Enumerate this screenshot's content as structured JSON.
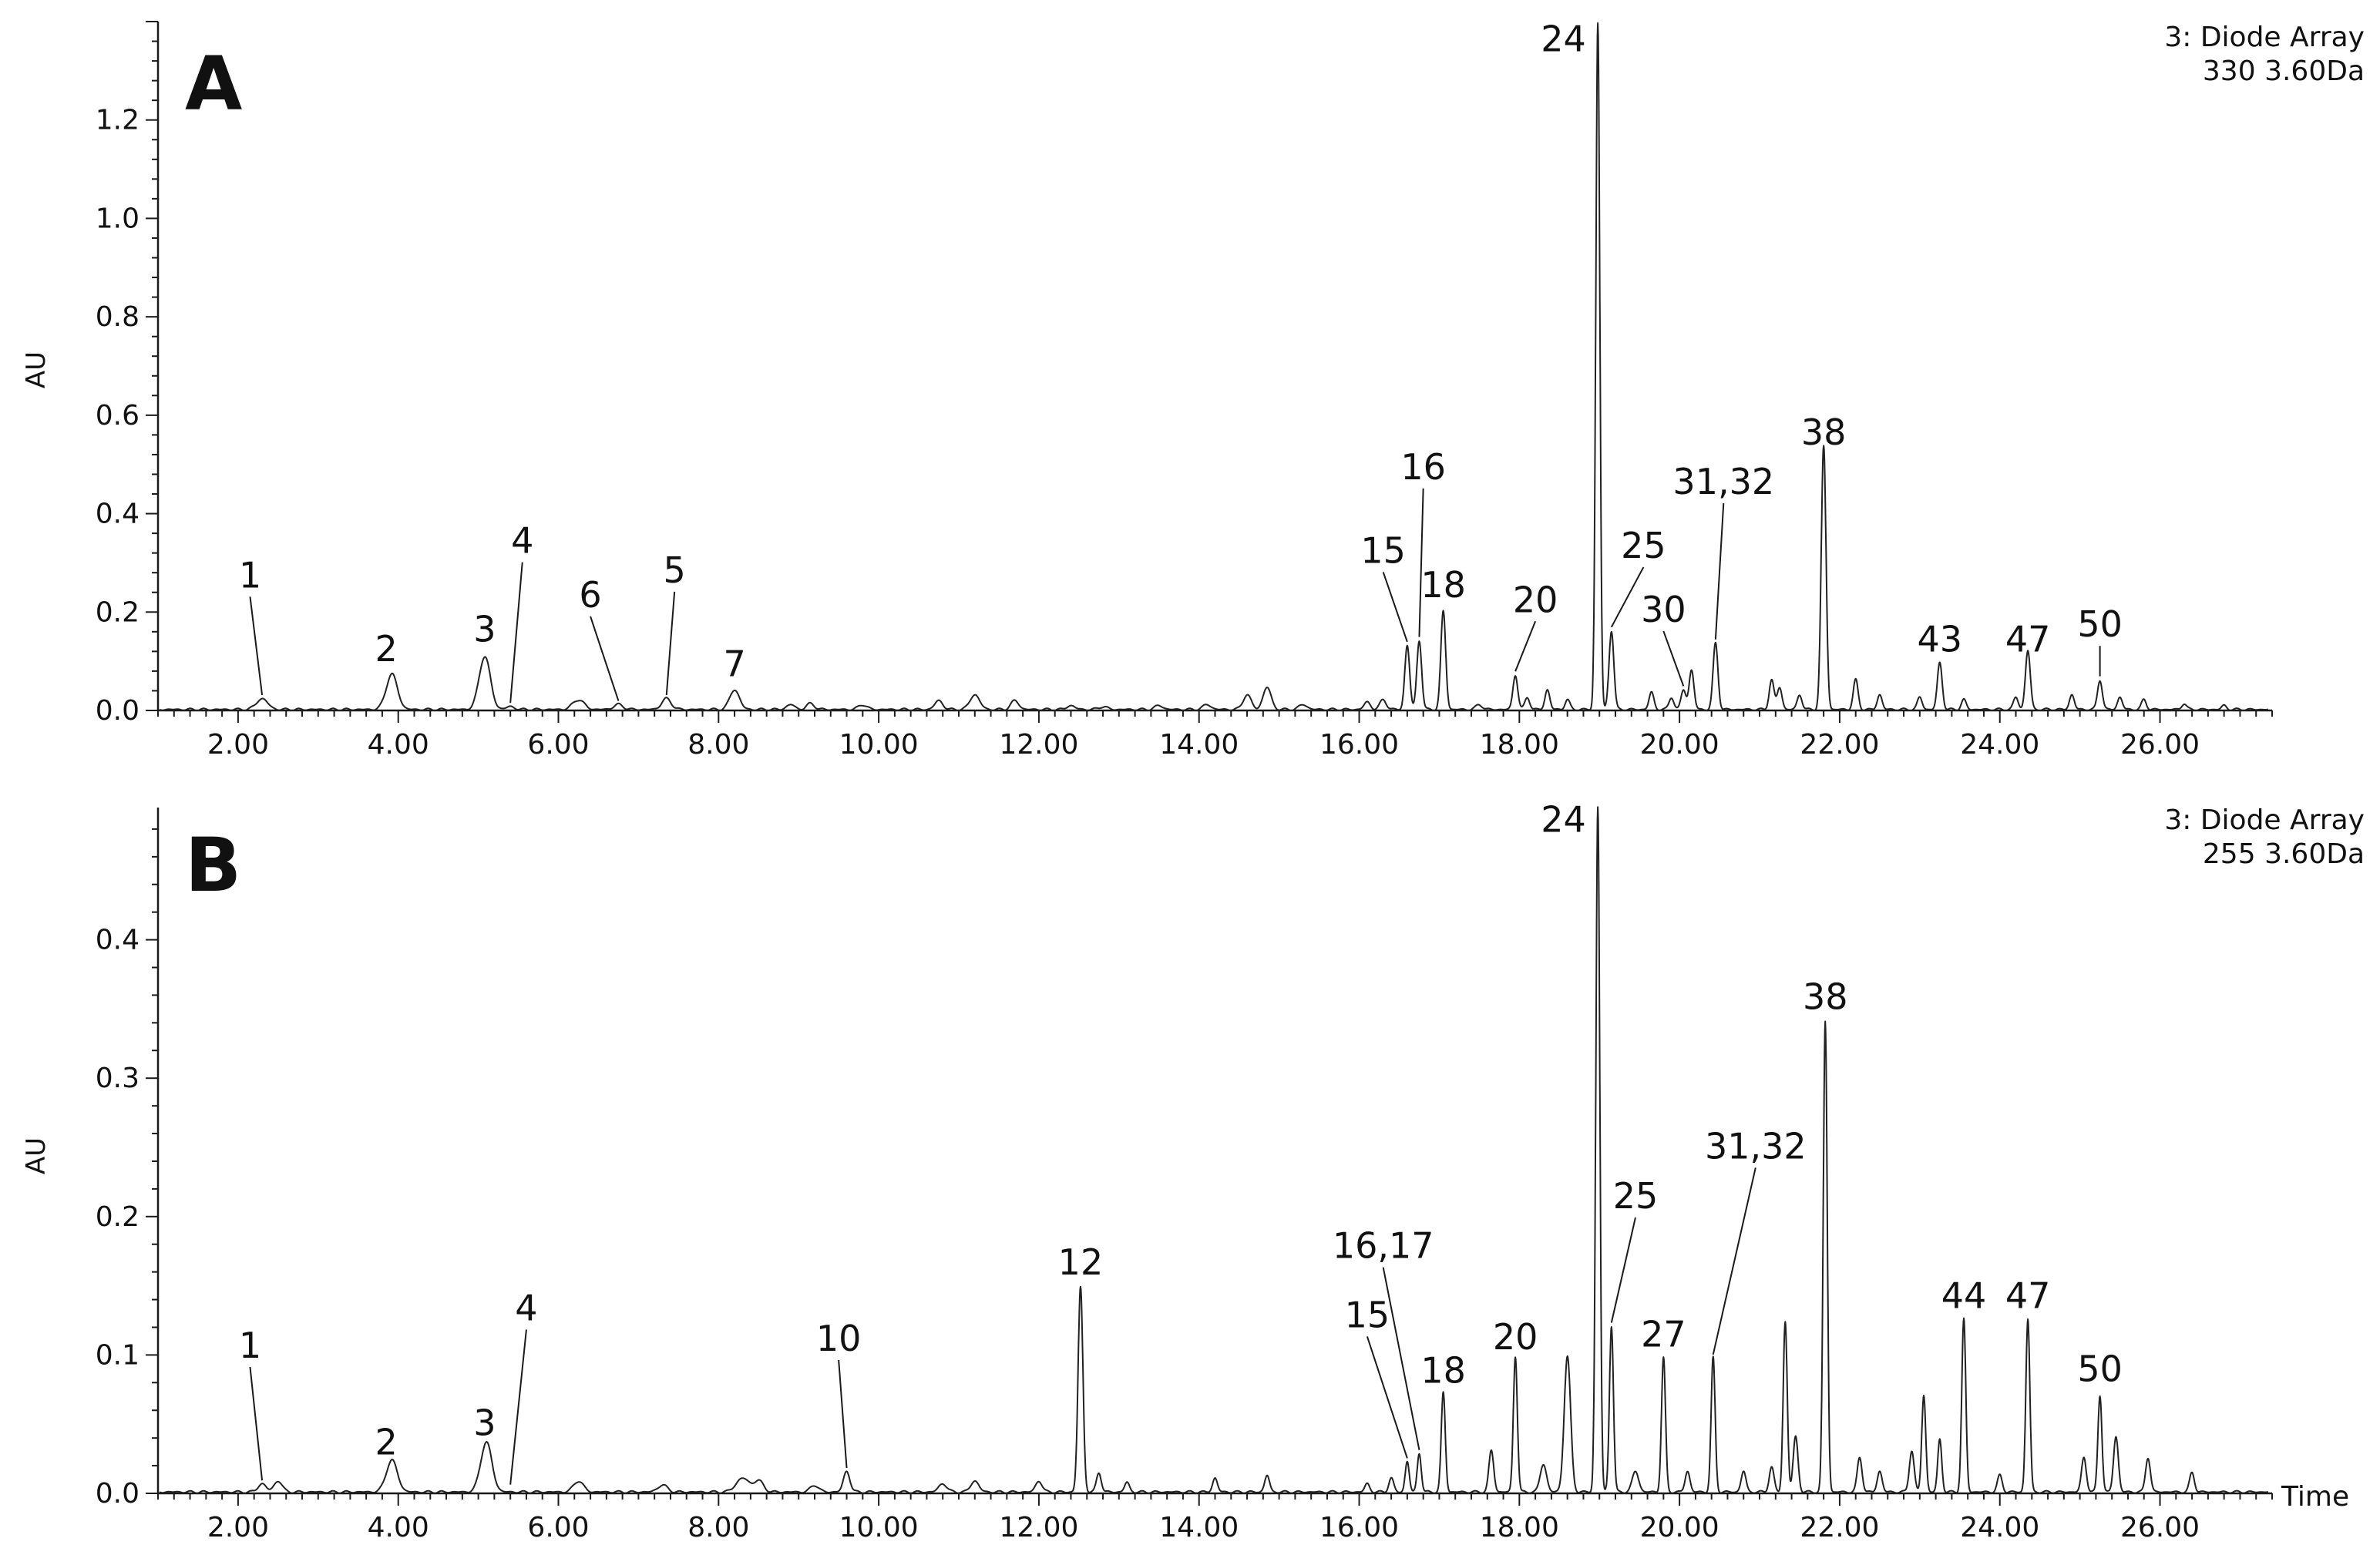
{
  "figure": {
    "panels": [
      {
        "letter": "A",
        "detector_line1": "3: Diode Array",
        "detector_line2": "330 3.60Da",
        "ylabel": "AU",
        "xlabel": ""
      },
      {
        "letter": "B",
        "detector_line1": "3: Diode Array",
        "detector_line2": "255 3.60Da",
        "ylabel": "AU",
        "xlabel": "Time"
      }
    ]
  },
  "chart_data": [
    {
      "type": "line",
      "title": "",
      "panel": "A",
      "xlabel": "",
      "ylabel": "AU",
      "xlim": [
        1.0,
        27.4
      ],
      "ylim": [
        0.0,
        1.4
      ],
      "x_ticks": [
        2,
        4,
        6,
        8,
        10,
        12,
        14,
        16,
        18,
        20,
        22,
        24,
        26
      ],
      "x_tick_labels": [
        "2.00",
        "4.00",
        "6.00",
        "8.00",
        "10.00",
        "12.00",
        "14.00",
        "16.00",
        "18.00",
        "20.00",
        "22.00",
        "24.00",
        "26.00"
      ],
      "y_ticks": [
        0.0,
        0.2,
        0.4,
        0.6,
        0.8,
        1.0,
        1.2
      ],
      "y_tick_labels": [
        "0.0",
        "0.2",
        "0.4",
        "0.6",
        "0.8",
        "1.0",
        "1.2"
      ],
      "legend": "none",
      "grid": false,
      "baseline": 0.002,
      "peaks": [
        {
          "rt": 2.3,
          "h": 0.022,
          "w": 0.07
        },
        {
          "rt": 3.92,
          "h": 0.072,
          "w": 0.07
        },
        {
          "rt": 5.08,
          "h": 0.108,
          "w": 0.07
        },
        {
          "rt": 5.4,
          "h": 0.006,
          "w": 0.05
        },
        {
          "rt": 6.25,
          "h": 0.02,
          "w": 0.07
        },
        {
          "rt": 6.75,
          "h": 0.01,
          "w": 0.06
        },
        {
          "rt": 7.35,
          "h": 0.022,
          "w": 0.06
        },
        {
          "rt": 8.2,
          "h": 0.04,
          "w": 0.06
        },
        {
          "rt": 8.9,
          "h": 0.01,
          "w": 0.05
        },
        {
          "rt": 9.15,
          "h": 0.012,
          "w": 0.05
        },
        {
          "rt": 9.8,
          "h": 0.01,
          "w": 0.05
        },
        {
          "rt": 10.75,
          "h": 0.018,
          "w": 0.05
        },
        {
          "rt": 11.2,
          "h": 0.03,
          "w": 0.06
        },
        {
          "rt": 11.7,
          "h": 0.018,
          "w": 0.05
        },
        {
          "rt": 12.4,
          "h": 0.008,
          "w": 0.05
        },
        {
          "rt": 12.8,
          "h": 0.006,
          "w": 0.05
        },
        {
          "rt": 13.5,
          "h": 0.008,
          "w": 0.05
        },
        {
          "rt": 14.1,
          "h": 0.01,
          "w": 0.05
        },
        {
          "rt": 14.6,
          "h": 0.03,
          "w": 0.05
        },
        {
          "rt": 14.85,
          "h": 0.045,
          "w": 0.05
        },
        {
          "rt": 15.3,
          "h": 0.01,
          "w": 0.05
        },
        {
          "rt": 16.1,
          "h": 0.015,
          "w": 0.04
        },
        {
          "rt": 16.3,
          "h": 0.02,
          "w": 0.04
        },
        {
          "rt": 16.6,
          "h": 0.13,
          "w": 0.03
        },
        {
          "rt": 16.75,
          "h": 0.14,
          "w": 0.03
        },
        {
          "rt": 17.05,
          "h": 0.2,
          "w": 0.03
        },
        {
          "rt": 17.5,
          "h": 0.01,
          "w": 0.04
        },
        {
          "rt": 17.95,
          "h": 0.07,
          "w": 0.03
        },
        {
          "rt": 18.1,
          "h": 0.025,
          "w": 0.03
        },
        {
          "rt": 18.35,
          "h": 0.04,
          "w": 0.03
        },
        {
          "rt": 18.6,
          "h": 0.02,
          "w": 0.03
        },
        {
          "rt": 18.98,
          "h": 1.395,
          "w": 0.025
        },
        {
          "rt": 19.15,
          "h": 0.16,
          "w": 0.03
        },
        {
          "rt": 19.65,
          "h": 0.035,
          "w": 0.03
        },
        {
          "rt": 19.9,
          "h": 0.025,
          "w": 0.03
        },
        {
          "rt": 20.05,
          "h": 0.04,
          "w": 0.03
        },
        {
          "rt": 20.15,
          "h": 0.08,
          "w": 0.03
        },
        {
          "rt": 20.45,
          "h": 0.135,
          "w": 0.03
        },
        {
          "rt": 21.15,
          "h": 0.06,
          "w": 0.03
        },
        {
          "rt": 21.25,
          "h": 0.045,
          "w": 0.03
        },
        {
          "rt": 21.5,
          "h": 0.03,
          "w": 0.03
        },
        {
          "rt": 21.8,
          "h": 0.535,
          "w": 0.03
        },
        {
          "rt": 22.2,
          "h": 0.06,
          "w": 0.03
        },
        {
          "rt": 22.5,
          "h": 0.03,
          "w": 0.03
        },
        {
          "rt": 23.0,
          "h": 0.025,
          "w": 0.03
        },
        {
          "rt": 23.25,
          "h": 0.095,
          "w": 0.03
        },
        {
          "rt": 23.55,
          "h": 0.02,
          "w": 0.03
        },
        {
          "rt": 24.2,
          "h": 0.025,
          "w": 0.03
        },
        {
          "rt": 24.35,
          "h": 0.12,
          "w": 0.03
        },
        {
          "rt": 24.9,
          "h": 0.03,
          "w": 0.03
        },
        {
          "rt": 25.25,
          "h": 0.06,
          "w": 0.03
        },
        {
          "rt": 25.5,
          "h": 0.025,
          "w": 0.03
        },
        {
          "rt": 25.8,
          "h": 0.02,
          "w": 0.03
        },
        {
          "rt": 26.3,
          "h": 0.012,
          "w": 0.03
        },
        {
          "rt": 26.8,
          "h": 0.008,
          "w": 0.03
        }
      ],
      "annotations": [
        {
          "text": "1",
          "rt": 2.3,
          "h": 0.022,
          "label_rt": 2.15,
          "label_y": 0.25
        },
        {
          "text": "2",
          "rt": 3.92,
          "h": 0.072,
          "label_rt": 3.85,
          "label_y": 0.1
        },
        {
          "text": "3",
          "rt": 5.08,
          "h": 0.108,
          "label_rt": 5.08,
          "label_y": 0.14
        },
        {
          "text": "4",
          "rt": 5.4,
          "h": 0.006,
          "label_rt": 5.55,
          "label_y": 0.32
        },
        {
          "text": "6",
          "rt": 6.75,
          "h": 0.01,
          "label_rt": 6.4,
          "label_y": 0.21
        },
        {
          "text": "5",
          "rt": 7.35,
          "h": 0.022,
          "label_rt": 7.45,
          "label_y": 0.26
        },
        {
          "text": "7",
          "rt": 8.2,
          "h": 0.04,
          "label_rt": 8.2,
          "label_y": 0.07
        },
        {
          "text": "15",
          "rt": 16.6,
          "h": 0.13,
          "label_rt": 16.3,
          "label_y": 0.3
        },
        {
          "text": "16",
          "rt": 16.75,
          "h": 0.14,
          "label_rt": 16.8,
          "label_y": 0.47
        },
        {
          "text": "18",
          "rt": 17.05,
          "h": 0.2,
          "label_rt": 17.05,
          "label_y": 0.23
        },
        {
          "text": "20",
          "rt": 17.95,
          "h": 0.07,
          "label_rt": 18.2,
          "label_y": 0.2
        },
        {
          "text": "24",
          "rt": 18.98,
          "h": 1.395,
          "label_rt": 18.55,
          "label_y": 1.34
        },
        {
          "text": "25",
          "rt": 19.15,
          "h": 0.16,
          "label_rt": 19.55,
          "label_y": 0.31
        },
        {
          "text": "30",
          "rt": 20.05,
          "h": 0.04,
          "label_rt": 19.8,
          "label_y": 0.18
        },
        {
          "text": "31,32",
          "rt": 20.45,
          "h": 0.135,
          "label_rt": 20.55,
          "label_y": 0.44
        },
        {
          "text": "38",
          "rt": 21.8,
          "h": 0.535,
          "label_rt": 21.8,
          "label_y": 0.54
        },
        {
          "text": "43",
          "rt": 23.25,
          "h": 0.095,
          "label_rt": 23.25,
          "label_y": 0.12
        },
        {
          "text": "47",
          "rt": 24.35,
          "h": 0.12,
          "label_rt": 24.35,
          "label_y": 0.12
        },
        {
          "text": "50",
          "rt": 25.25,
          "h": 0.06,
          "label_rt": 25.25,
          "label_y": 0.15
        }
      ]
    },
    {
      "type": "line",
      "title": "",
      "panel": "B",
      "xlabel": "Time",
      "ylabel": "AU",
      "xlim": [
        1.0,
        27.4
      ],
      "ylim": [
        0.0,
        0.5
      ],
      "x_ticks": [
        2,
        4,
        6,
        8,
        10,
        12,
        14,
        16,
        18,
        20,
        22,
        24,
        26
      ],
      "x_tick_labels": [
        "2.00",
        "4.00",
        "6.00",
        "8.00",
        "10.00",
        "12.00",
        "14.00",
        "16.00",
        "18.00",
        "20.00",
        "22.00",
        "24.00",
        "26.00"
      ],
      "y_ticks": [
        0.0,
        0.1,
        0.2,
        0.3,
        0.4
      ],
      "y_tick_labels": [
        "0.0",
        "0.1",
        "0.2",
        "0.3",
        "0.4"
      ],
      "legend": "none",
      "grid": false,
      "baseline": 0.001,
      "peaks": [
        {
          "rt": 2.3,
          "h": 0.006,
          "w": 0.05
        },
        {
          "rt": 2.5,
          "h": 0.008,
          "w": 0.05
        },
        {
          "rt": 3.92,
          "h": 0.023,
          "w": 0.07
        },
        {
          "rt": 5.1,
          "h": 0.036,
          "w": 0.07
        },
        {
          "rt": 6.25,
          "h": 0.008,
          "w": 0.06
        },
        {
          "rt": 7.3,
          "h": 0.005,
          "w": 0.06
        },
        {
          "rt": 8.3,
          "h": 0.01,
          "w": 0.08
        },
        {
          "rt": 8.5,
          "h": 0.008,
          "w": 0.06
        },
        {
          "rt": 9.2,
          "h": 0.005,
          "w": 0.05
        },
        {
          "rt": 9.6,
          "h": 0.015,
          "w": 0.04
        },
        {
          "rt": 10.8,
          "h": 0.006,
          "w": 0.05
        },
        {
          "rt": 11.2,
          "h": 0.008,
          "w": 0.05
        },
        {
          "rt": 12.0,
          "h": 0.008,
          "w": 0.04
        },
        {
          "rt": 12.52,
          "h": 0.148,
          "w": 0.03
        },
        {
          "rt": 12.75,
          "h": 0.014,
          "w": 0.03
        },
        {
          "rt": 13.1,
          "h": 0.007,
          "w": 0.03
        },
        {
          "rt": 14.2,
          "h": 0.01,
          "w": 0.03
        },
        {
          "rt": 14.85,
          "h": 0.012,
          "w": 0.03
        },
        {
          "rt": 16.1,
          "h": 0.006,
          "w": 0.03
        },
        {
          "rt": 16.4,
          "h": 0.01,
          "w": 0.03
        },
        {
          "rt": 16.6,
          "h": 0.022,
          "w": 0.025
        },
        {
          "rt": 16.75,
          "h": 0.028,
          "w": 0.025
        },
        {
          "rt": 17.05,
          "h": 0.072,
          "w": 0.025
        },
        {
          "rt": 17.65,
          "h": 0.03,
          "w": 0.03
        },
        {
          "rt": 17.95,
          "h": 0.098,
          "w": 0.025
        },
        {
          "rt": 18.3,
          "h": 0.02,
          "w": 0.04
        },
        {
          "rt": 18.6,
          "h": 0.098,
          "w": 0.04
        },
        {
          "rt": 18.98,
          "h": 0.495,
          "w": 0.025
        },
        {
          "rt": 19.15,
          "h": 0.12,
          "w": 0.025
        },
        {
          "rt": 19.45,
          "h": 0.015,
          "w": 0.04
        },
        {
          "rt": 19.8,
          "h": 0.097,
          "w": 0.025
        },
        {
          "rt": 20.1,
          "h": 0.015,
          "w": 0.03
        },
        {
          "rt": 20.42,
          "h": 0.097,
          "w": 0.025
        },
        {
          "rt": 20.8,
          "h": 0.015,
          "w": 0.03
        },
        {
          "rt": 21.15,
          "h": 0.018,
          "w": 0.03
        },
        {
          "rt": 21.32,
          "h": 0.123,
          "w": 0.025
        },
        {
          "rt": 21.45,
          "h": 0.04,
          "w": 0.03
        },
        {
          "rt": 21.82,
          "h": 0.34,
          "w": 0.025
        },
        {
          "rt": 22.25,
          "h": 0.025,
          "w": 0.03
        },
        {
          "rt": 22.5,
          "h": 0.015,
          "w": 0.03
        },
        {
          "rt": 22.9,
          "h": 0.03,
          "w": 0.03
        },
        {
          "rt": 23.05,
          "h": 0.07,
          "w": 0.025
        },
        {
          "rt": 23.25,
          "h": 0.038,
          "w": 0.025
        },
        {
          "rt": 23.55,
          "h": 0.125,
          "w": 0.025
        },
        {
          "rt": 24.0,
          "h": 0.012,
          "w": 0.03
        },
        {
          "rt": 24.35,
          "h": 0.125,
          "w": 0.025
        },
        {
          "rt": 25.05,
          "h": 0.025,
          "w": 0.03
        },
        {
          "rt": 25.25,
          "h": 0.07,
          "w": 0.025
        },
        {
          "rt": 25.45,
          "h": 0.04,
          "w": 0.03
        },
        {
          "rt": 25.85,
          "h": 0.025,
          "w": 0.03
        },
        {
          "rt": 26.4,
          "h": 0.014,
          "w": 0.03
        }
      ],
      "annotations": [
        {
          "text": "1",
          "rt": 2.3,
          "h": 0.006,
          "label_rt": 2.15,
          "label_y": 0.098
        },
        {
          "text": "2",
          "rt": 3.92,
          "h": 0.023,
          "label_rt": 3.85,
          "label_y": 0.028
        },
        {
          "text": "3",
          "rt": 5.1,
          "h": 0.036,
          "label_rt": 5.08,
          "label_y": 0.042
        },
        {
          "text": "4",
          "rt": 5.4,
          "h": 0.003,
          "label_rt": 5.6,
          "label_y": 0.125
        },
        {
          "text": "10",
          "rt": 9.6,
          "h": 0.015,
          "label_rt": 9.5,
          "label_y": 0.103
        },
        {
          "text": "12",
          "rt": 12.52,
          "h": 0.148,
          "label_rt": 12.52,
          "label_y": 0.158
        },
        {
          "text": "15",
          "rt": 16.6,
          "h": 0.022,
          "label_rt": 16.1,
          "label_y": 0.12
        },
        {
          "text": "16,17",
          "rt": 16.75,
          "h": 0.028,
          "label_rt": 16.3,
          "label_y": 0.17
        },
        {
          "text": "18",
          "rt": 17.05,
          "h": 0.072,
          "label_rt": 17.05,
          "label_y": 0.08
        },
        {
          "text": "20",
          "rt": 17.95,
          "h": 0.098,
          "label_rt": 17.95,
          "label_y": 0.104
        },
        {
          "text": "24",
          "rt": 18.98,
          "h": 0.495,
          "label_rt": 18.55,
          "label_y": 0.478
        },
        {
          "text": "25",
          "rt": 19.15,
          "h": 0.12,
          "label_rt": 19.45,
          "label_y": 0.206
        },
        {
          "text": "27",
          "rt": 19.8,
          "h": 0.097,
          "label_rt": 19.8,
          "label_y": 0.106
        },
        {
          "text": "31,32",
          "rt": 20.42,
          "h": 0.097,
          "label_rt": 20.95,
          "label_y": 0.242
        },
        {
          "text": "38",
          "rt": 21.82,
          "h": 0.34,
          "label_rt": 21.82,
          "label_y": 0.35
        },
        {
          "text": "44",
          "rt": 23.55,
          "h": 0.125,
          "label_rt": 23.55,
          "label_y": 0.134
        },
        {
          "text": "47",
          "rt": 24.35,
          "h": 0.125,
          "label_rt": 24.35,
          "label_y": 0.134
        },
        {
          "text": "50",
          "rt": 25.25,
          "h": 0.07,
          "label_rt": 25.25,
          "label_y": 0.081
        }
      ]
    }
  ]
}
